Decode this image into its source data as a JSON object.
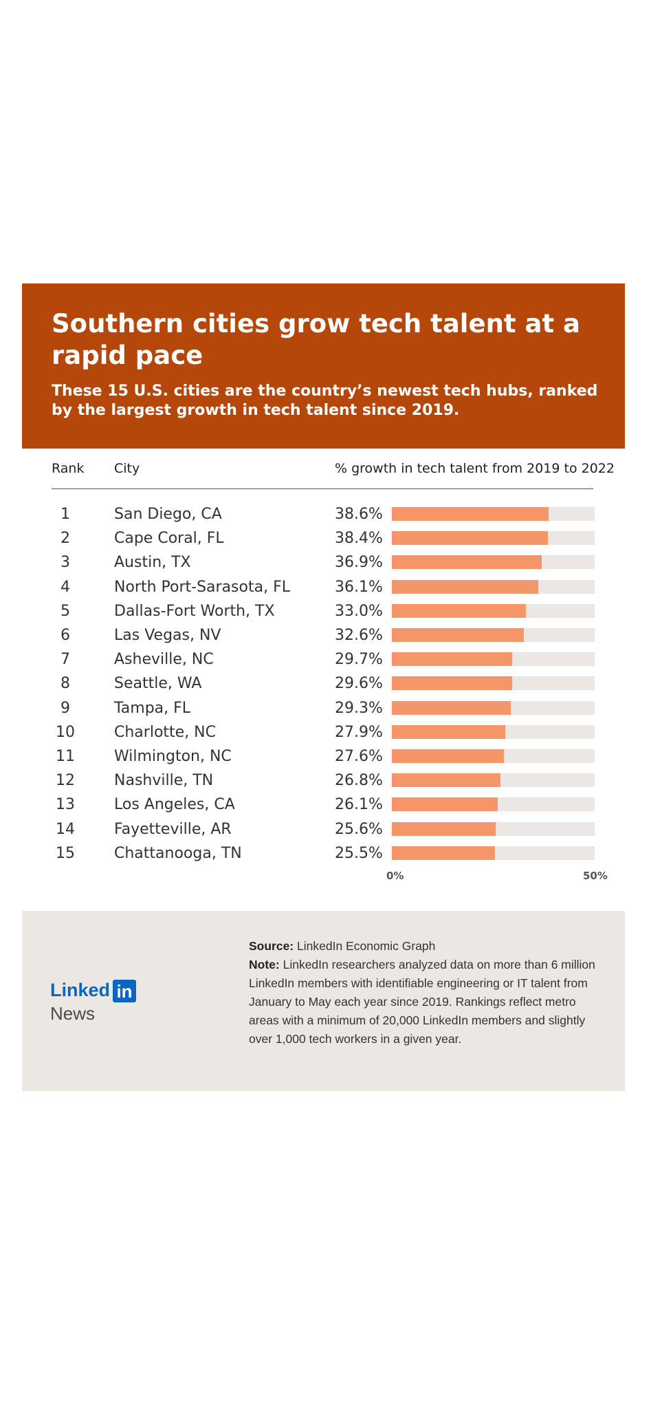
{
  "header": {
    "title": "Southern cities grow tech talent at a rapid pace",
    "subtitle": "These 15 U.S. cities are the country’s newest tech hubs, ranked by the largest growth in tech talent since 2019."
  },
  "columns": {
    "rank": "Rank",
    "city": "City",
    "growth": "% growth in tech talent from 2019 to 2022"
  },
  "chart_data": {
    "type": "bar",
    "orientation": "horizontal",
    "title": "Southern cities grow tech talent at a rapid pace",
    "xlabel": "% growth in tech talent from 2019 to 2022",
    "xlim": [
      0,
      50
    ],
    "x_tick_labels": [
      "0%",
      "50%"
    ],
    "grid": false,
    "rows": [
      {
        "rank": "1",
        "city": "San Diego, CA",
        "value": 38.6,
        "label": "38.6%"
      },
      {
        "rank": "2",
        "city": "Cape Coral, FL",
        "value": 38.4,
        "label": "38.4%"
      },
      {
        "rank": "3",
        "city": "Austin, TX",
        "value": 36.9,
        "label": "36.9%"
      },
      {
        "rank": "4",
        "city": "North Port-Sarasota, FL",
        "value": 36.1,
        "label": "36.1%"
      },
      {
        "rank": "5",
        "city": "Dallas-Fort Worth, TX",
        "value": 33.0,
        "label": "33.0%"
      },
      {
        "rank": "6",
        "city": "Las Vegas, NV",
        "value": 32.6,
        "label": "32.6%"
      },
      {
        "rank": "7",
        "city": "Asheville, NC",
        "value": 29.7,
        "label": "29.7%"
      },
      {
        "rank": "8",
        "city": "Seattle, WA",
        "value": 29.6,
        "label": "29.6%"
      },
      {
        "rank": "9",
        "city": "Tampa, FL",
        "value": 29.3,
        "label": "29.3%"
      },
      {
        "rank": "10",
        "city": "Charlotte, NC",
        "value": 27.9,
        "label": "27.9%"
      },
      {
        "rank": "11",
        "city": "Wilmington, NC",
        "value": 27.6,
        "label": "27.6%"
      },
      {
        "rank": "12",
        "city": "Nashville, TN",
        "value": 26.8,
        "label": "26.8%"
      },
      {
        "rank": "13",
        "city": "Los Angeles, CA",
        "value": 26.1,
        "label": "26.1%"
      },
      {
        "rank": "14",
        "city": "Fayetteville, AR",
        "value": 25.6,
        "label": "25.6%"
      },
      {
        "rank": "15",
        "city": "Chattanooga, TN",
        "value": 25.5,
        "label": "25.5%"
      }
    ]
  },
  "colors": {
    "header_bg": "#b5470b",
    "bar_fill": "#f5956a",
    "bar_track": "#ebe7e4",
    "footer_bg": "#ebe8e4",
    "linkedin_blue": "#0a66c2"
  },
  "footer": {
    "logo_word": "Linked",
    "logo_box": "in",
    "logo_sub": "News",
    "source_label": "Source:",
    "source_text": "LinkedIn Economic Graph",
    "note_label": "Note:",
    "note_text": "LinkedIn researchers analyzed data on more than 6 million LinkedIn members with identifiable engineering or IT talent from January to May each year since 2019. Rankings reflect metro areas with a minimum of 20,000 LinkedIn members and slightly over 1,000 tech workers in a given year."
  }
}
